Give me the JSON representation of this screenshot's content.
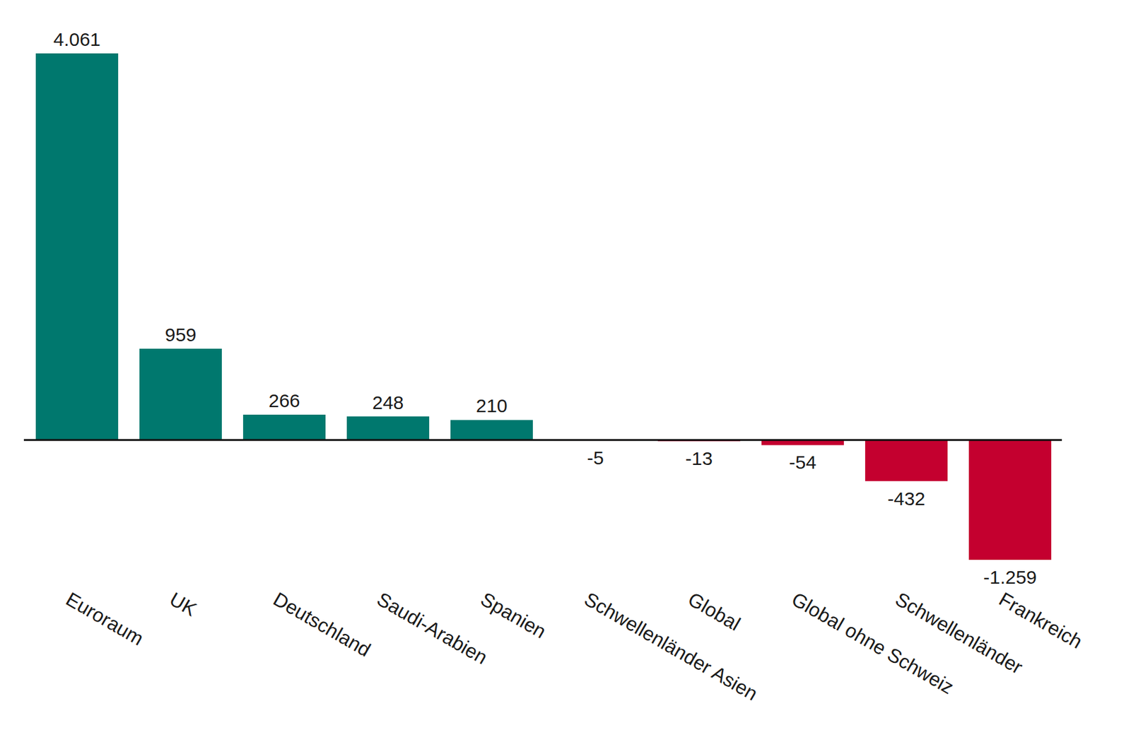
{
  "chart_data": {
    "type": "bar",
    "categories": [
      "Euroraum",
      "UK",
      "Deutschland",
      "Saudi-Arabien",
      "Spanien",
      "Schwellenländer Asien",
      "Global",
      "Global ohne Schweiz",
      "Schwellenländer",
      "Frankreich"
    ],
    "values": [
      4061,
      959,
      266,
      248,
      210,
      -5,
      -13,
      -54,
      -432,
      -1259
    ],
    "value_labels": [
      "4.061",
      "959",
      "266",
      "248",
      "210",
      "-5",
      "-13",
      "-54",
      "-432",
      "-1.259"
    ],
    "colors": [
      "#00786e",
      "#00786e",
      "#00786e",
      "#00786e",
      "#00786e",
      "#c4002f",
      "#c4002f",
      "#c4002f",
      "#c4002f",
      "#c4002f"
    ],
    "ylim": [
      -1259,
      4061
    ],
    "data_labels": true,
    "tick_labels": "x",
    "grid": false
  }
}
